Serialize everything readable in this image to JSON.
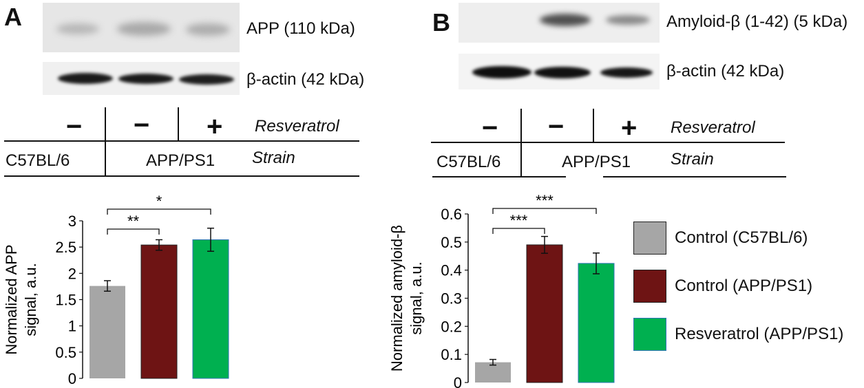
{
  "panels": {
    "a": {
      "letter": "A",
      "band_top": "APP (110 kDa)",
      "band_bottom": "β-actin (42 kDa)",
      "signs": [
        "−",
        "−",
        "+"
      ],
      "resveratrol": "Resveratrol",
      "strain_label": "Strain",
      "strain_1": "C57BL/6",
      "strain_2": "APP/PS1"
    },
    "b": {
      "letter": "B",
      "band_top": "Amyloid-β (1-42) (5 kDa)",
      "band_bottom": "β-actin (42 kDa)",
      "signs": [
        "−",
        "−",
        "+"
      ],
      "resveratrol": "Resveratrol",
      "strain_label": "Strain",
      "strain_1": "C57BL/6",
      "strain_2": "APP/PS1"
    }
  },
  "legend": [
    {
      "label": "Control (C57BL/6)",
      "color": "#a6a6a6"
    },
    {
      "label": "Control (APP/PS1)",
      "color": "#6e1414"
    },
    {
      "label": "Resveratrol (APP/PS1)",
      "color": "#00b050"
    }
  ],
  "chart_data": [
    {
      "type": "bar",
      "ylabel_line1": "Normalized APP",
      "ylabel_line2": "signal, a.u.",
      "ylim": [
        0,
        3
      ],
      "yticks": [
        "0",
        "0.5",
        "1",
        "1.5",
        "2",
        "2.5",
        "3"
      ],
      "values": [
        1.76,
        2.54,
        2.64
      ],
      "errors": [
        0.1,
        0.1,
        0.22
      ],
      "colors": [
        "#a6a6a6",
        "#6e1414",
        "#00b050"
      ],
      "significance": [
        {
          "from": 0,
          "to": 1,
          "label": "**"
        },
        {
          "from": 0,
          "to": 2,
          "label": "*"
        }
      ]
    },
    {
      "type": "bar",
      "ylabel_line1": "Normalized amyloid-β",
      "ylabel_line2": "signal, a.u.",
      "ylim": [
        0,
        0.6
      ],
      "yticks": [
        "0",
        "0.1",
        "0.2",
        "0.3",
        "0.4",
        "0.5",
        "0.6"
      ],
      "values": [
        0.072,
        0.49,
        0.424
      ],
      "errors": [
        0.01,
        0.03,
        0.037
      ],
      "colors": [
        "#a6a6a6",
        "#6e1414",
        "#00b050"
      ],
      "significance": [
        {
          "from": 0,
          "to": 1,
          "label": "***"
        },
        {
          "from": 0,
          "to": 2,
          "label": "***"
        }
      ]
    }
  ]
}
